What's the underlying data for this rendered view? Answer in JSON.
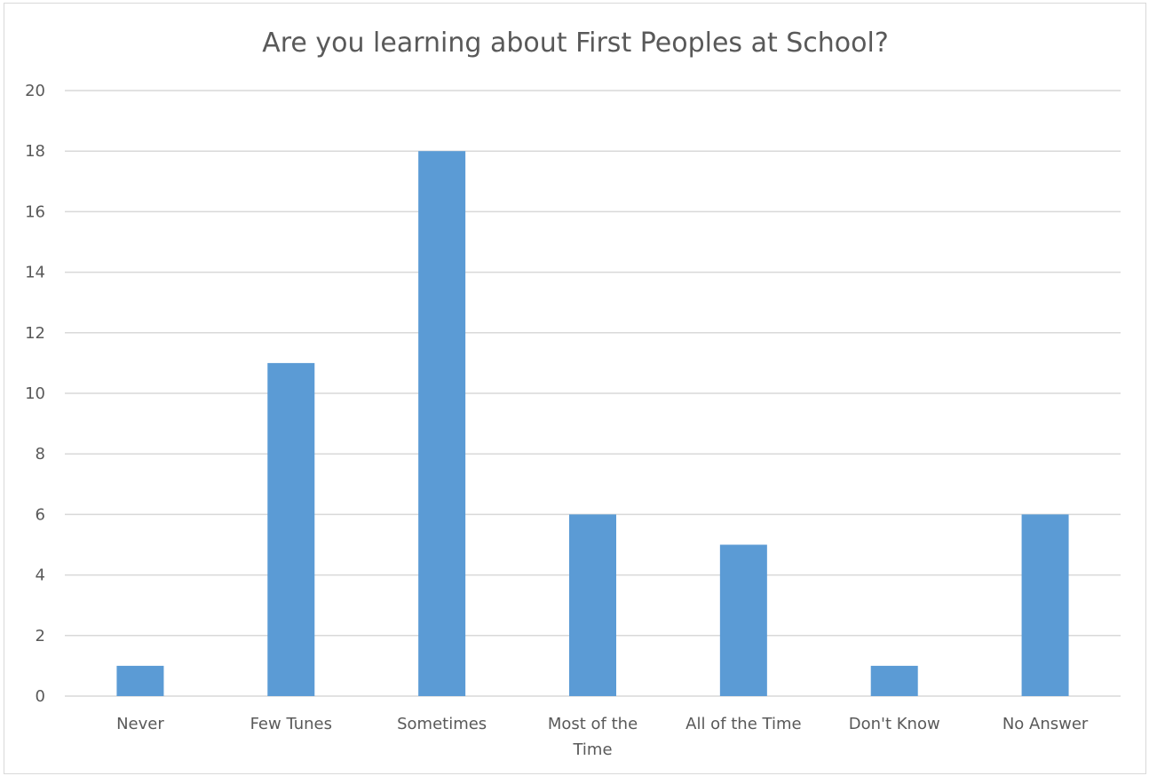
{
  "chart_data": {
    "type": "bar",
    "title": "Are you learning about First Peoples at School?",
    "xlabel": "",
    "ylabel": "",
    "categories": [
      "Never",
      "Few Tunes",
      "Sometimes",
      "Most of the Time",
      "All of the Time",
      "Don't Know",
      "No Answer"
    ],
    "category_lines": [
      [
        "Never"
      ],
      [
        "Few Tunes"
      ],
      [
        "Sometimes"
      ],
      [
        "Most of the",
        "Time"
      ],
      [
        "All of the Time"
      ],
      [
        "Don't Know"
      ],
      [
        "No Answer"
      ]
    ],
    "values": [
      1,
      11,
      18,
      6,
      5,
      1,
      6
    ],
    "ylim": [
      0,
      20
    ],
    "yticks": [
      0,
      2,
      4,
      6,
      8,
      10,
      12,
      14,
      16,
      18,
      20
    ],
    "grid": true,
    "legend": "none",
    "bar_color": "#5b9bd5",
    "grid_color": "#d9d9d9",
    "text_color": "#595959"
  }
}
